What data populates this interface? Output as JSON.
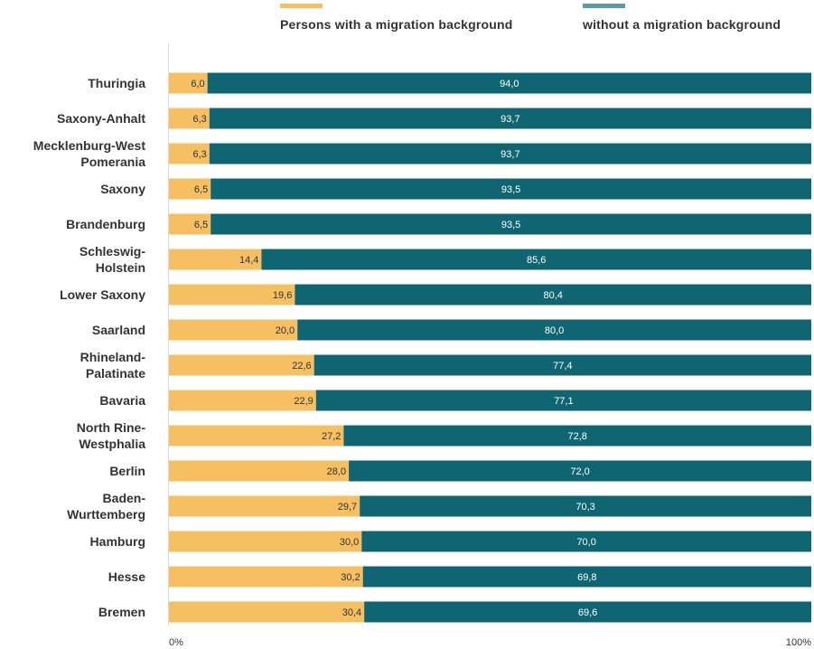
{
  "chart_data": {
    "type": "bar",
    "stacked": true,
    "orientation": "horizontal",
    "categories": [
      "Thuringia",
      "Saxony-Anhalt",
      "Mecklenburg-West Pomerania",
      "Saxony",
      "Brandenburg",
      "Schleswig-Holstein",
      "Lower Saxony",
      "Saarland",
      "Rhineland-Palatinate",
      "Bavaria",
      "North Rine-Westphalia",
      "Berlin",
      "Baden-Wurttemberg",
      "Hamburg",
      "Hesse",
      "Bremen"
    ],
    "category_label_lines": [
      [
        "Thuringia"
      ],
      [
        "Saxony-Anhalt"
      ],
      [
        "Mecklenburg-West",
        "Pomerania"
      ],
      [
        "Saxony"
      ],
      [
        "Brandenburg"
      ],
      [
        "Schleswig-",
        "Holstein"
      ],
      [
        "Lower Saxony"
      ],
      [
        "Saarland"
      ],
      [
        "Rhineland-",
        "Palatinate"
      ],
      [
        "Bavaria"
      ],
      [
        "North Rine-",
        "Westphalia"
      ],
      [
        "Berlin"
      ],
      [
        "Baden-",
        "Wurttemberg"
      ],
      [
        "Hamburg"
      ],
      [
        "Hesse"
      ],
      [
        "Bremen"
      ]
    ],
    "series": [
      {
        "name": "Persons with a migration background",
        "color": "#f6bf62",
        "values": [
          6.0,
          6.3,
          6.3,
          6.5,
          6.5,
          14.4,
          19.6,
          20.0,
          22.6,
          22.9,
          27.2,
          28.0,
          29.7,
          30.0,
          30.2,
          30.4
        ],
        "labels": [
          "6,0",
          "6,3",
          "6,3",
          "6,5",
          "6,5",
          "14,4",
          "19,6",
          "20,0",
          "22,6",
          "22,9",
          "27,2",
          "28,0",
          "29,7",
          "30,0",
          "30,2",
          "30,4"
        ]
      },
      {
        "name": "without a migration background",
        "color": "#0f6672",
        "values": [
          94.0,
          93.7,
          93.7,
          93.5,
          93.5,
          85.6,
          80.4,
          80.0,
          77.4,
          77.1,
          72.8,
          72.0,
          70.3,
          70.0,
          69.8,
          69.6
        ],
        "labels": [
          "94,0",
          "93,7",
          "93,7",
          "93,5",
          "93,5",
          "85,6",
          "80,4",
          "80,0",
          "77,4",
          "77,1",
          "72,8",
          "72,0",
          "70,3",
          "70,0",
          "69,8",
          "69,6"
        ]
      }
    ],
    "xlim": [
      0,
      100
    ],
    "x_tick_labels": [
      "0%",
      "100%"
    ],
    "legend_position": "top-right",
    "grid": false,
    "title": "",
    "xlabel": "",
    "ylabel": ""
  },
  "legend_colors": {
    "a": "#f6bf62",
    "b": "#5e9aa2"
  }
}
